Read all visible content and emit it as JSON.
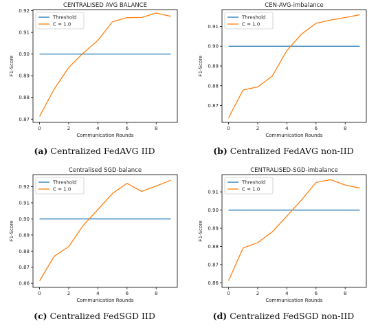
{
  "chart_data": [
    {
      "type": "line",
      "title": "CENTRALISED AVG BALANCE",
      "xlabel": "Communication Rounds",
      "ylabel": "F1-Score",
      "xlim": [
        -0.45,
        9.45
      ],
      "ylim": [
        0.8685,
        0.9205
      ],
      "xticks": [
        0,
        2,
        4,
        6,
        8
      ],
      "yticks": [
        0.87,
        0.88,
        0.89,
        0.9,
        0.91,
        0.92
      ],
      "ytick_labels": [
        "0.87",
        "0.88",
        "0.89",
        "0.90",
        "0.91",
        "0.92"
      ],
      "legend_position": "top-left",
      "grid": false,
      "caption_label": "(a)",
      "caption_text": "Centralized FedAVG IID",
      "series": [
        {
          "name": "Threshold",
          "color": "#1f77b4",
          "x": [
            0,
            9
          ],
          "y": [
            0.9,
            0.9
          ]
        },
        {
          "name": "C = 1.0",
          "color": "#ff7f0e",
          "x": [
            0,
            1,
            2,
            3,
            4,
            5,
            6,
            7,
            8,
            9
          ],
          "y": [
            0.8712,
            0.8838,
            0.8938,
            0.9005,
            0.9063,
            0.9149,
            0.9168,
            0.9169,
            0.9189,
            0.9174
          ]
        }
      ]
    },
    {
      "type": "line",
      "title": "CEN-AVG-imbalance",
      "xlabel": "Communication Rounds",
      "ylabel": "F1-Score",
      "xlim": [
        -0.45,
        9.45
      ],
      "ylim": [
        0.8615,
        0.9185
      ],
      "xticks": [
        0,
        2,
        4,
        6,
        8
      ],
      "yticks": [
        0.87,
        0.88,
        0.89,
        0.9,
        0.91
      ],
      "ytick_labels": [
        "0.87",
        "0.88",
        "0.89",
        "0.90",
        "0.91"
      ],
      "legend_position": "top-left",
      "grid": false,
      "caption_label": "(b)",
      "caption_text": "Centralized FedAVG non-IID",
      "series": [
        {
          "name": "Threshold",
          "color": "#1f77b4",
          "x": [
            0,
            9
          ],
          "y": [
            0.9,
            0.9
          ]
        },
        {
          "name": "C = 1.0",
          "color": "#ff7f0e",
          "x": [
            0,
            1,
            2,
            3,
            4,
            5,
            6,
            7,
            8,
            9
          ],
          "y": [
            0.8638,
            0.8779,
            0.8794,
            0.8849,
            0.8978,
            0.9061,
            0.9116,
            0.9132,
            0.9145,
            0.9159
          ]
        }
      ]
    },
    {
      "type": "line",
      "title": "Centralised SGD-balance",
      "xlabel": "Communication Rounds",
      "ylabel": "F1-Score",
      "xlim": [
        -0.45,
        9.45
      ],
      "ylim": [
        0.8575,
        0.9275
      ],
      "xticks": [
        0,
        2,
        4,
        6,
        8
      ],
      "yticks": [
        0.86,
        0.87,
        0.88,
        0.89,
        0.9,
        0.91,
        0.92
      ],
      "ytick_labels": [
        "0.86",
        "0.87",
        "0.88",
        "0.89",
        "0.90",
        "0.91",
        "0.92"
      ],
      "legend_position": "top-left",
      "grid": false,
      "caption_label": "(c)",
      "caption_text": "Centralized FedSGD IID",
      "series": [
        {
          "name": "Threshold",
          "color": "#1f77b4",
          "x": [
            0,
            9
          ],
          "y": [
            0.9,
            0.9
          ]
        },
        {
          "name": "C = 1.0",
          "color": "#ff7f0e",
          "x": [
            0,
            1,
            2,
            3,
            4,
            5,
            6,
            7,
            8,
            9
          ],
          "y": [
            0.8615,
            0.8768,
            0.8828,
            0.896,
            0.9058,
            0.9158,
            0.9221,
            0.9171,
            0.9204,
            0.924
          ]
        }
      ]
    },
    {
      "type": "line",
      "title": "CENTRALISED-SGD-imbalance",
      "xlabel": "Communication Rounds",
      "ylabel": "F1-Score",
      "xlim": [
        -0.45,
        9.45
      ],
      "ylim": [
        0.8575,
        0.9195
      ],
      "xticks": [
        0,
        2,
        4,
        6,
        8
      ],
      "yticks": [
        0.86,
        0.87,
        0.88,
        0.89,
        0.9,
        0.91
      ],
      "ytick_labels": [
        "0.86",
        "0.87",
        "0.88",
        "0.89",
        "0.90",
        "0.91"
      ],
      "legend_position": "top-left",
      "grid": false,
      "caption_label": "(d)",
      "caption_text": "Centralized FedSGD non-IID",
      "series": [
        {
          "name": "Threshold",
          "color": "#1f77b4",
          "x": [
            0,
            9
          ],
          "y": [
            0.9,
            0.9
          ]
        },
        {
          "name": "C = 1.0",
          "color": "#ff7f0e",
          "x": [
            0,
            1,
            2,
            3,
            4,
            5,
            6,
            7,
            8,
            9
          ],
          "y": [
            0.8612,
            0.8792,
            0.8821,
            0.888,
            0.8967,
            0.9055,
            0.9152,
            0.9167,
            0.9138,
            0.9121
          ]
        }
      ]
    }
  ]
}
